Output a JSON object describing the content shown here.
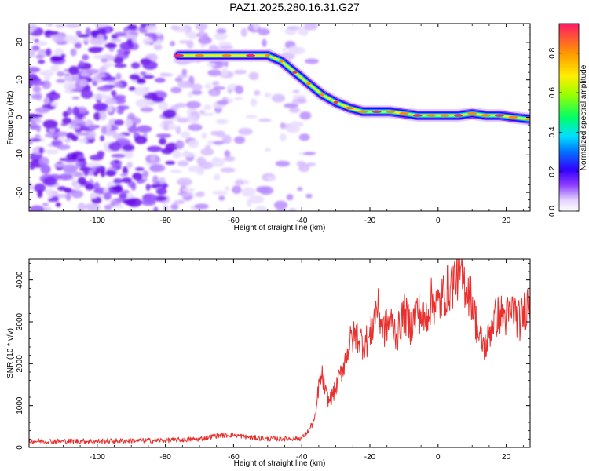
{
  "title": "PAZ1.2025.280.16.31.G27",
  "chart_data": [
    {
      "type": "heatmap",
      "name": "spectrogram",
      "xlabel": "Height of straight line (km)",
      "ylabel": "Frequency (Hz)",
      "xlim": [
        -120,
        27
      ],
      "ylim": [
        -25,
        25
      ],
      "xticks": [
        -100,
        -80,
        -60,
        -40,
        -20,
        0,
        20
      ],
      "yticks": [
        -20,
        -10,
        0,
        10,
        20
      ],
      "ridge": {
        "description": "dominant frequency track",
        "x": [
          -76,
          -70,
          -62,
          -55,
          -50,
          -46,
          -42,
          -38,
          -34,
          -30,
          -26,
          -22,
          -18,
          -14,
          -10,
          -6,
          -2,
          2,
          6,
          10,
          14,
          18,
          22,
          27
        ],
        "y": [
          16.5,
          16.5,
          16.5,
          16.5,
          16.5,
          15,
          12,
          9,
          6,
          4,
          2.5,
          1.5,
          1.5,
          1.5,
          1,
          0.5,
          0.5,
          0.5,
          0.5,
          1,
          0.5,
          0.5,
          0,
          -0.5
        ]
      },
      "noise_region_x": [
        -120,
        -40
      ],
      "colorbar": {
        "label": "Normalized spectral amplitude",
        "range": [
          0,
          0.95
        ],
        "ticks": [
          0.0,
          0.2,
          0.4,
          0.6,
          0.8
        ]
      }
    },
    {
      "type": "line",
      "name": "snr",
      "xlabel": "Height of straight line (km)",
      "ylabel": "SNR (10 * v/v)",
      "xlim": [
        -120,
        27
      ],
      "ylim": [
        0,
        4500
      ],
      "xticks": [
        -100,
        -80,
        -60,
        -40,
        -20,
        0,
        20
      ],
      "yticks": [
        0,
        1000,
        2000,
        3000,
        4000
      ],
      "color": "#e8302e",
      "series": [
        {
          "name": "SNR",
          "x": [
            -120,
            -110,
            -100,
            -90,
            -80,
            -70,
            -65,
            -60,
            -55,
            -50,
            -45,
            -40,
            -38,
            -36,
            -35,
            -34,
            -33,
            -32,
            -30,
            -28,
            -26,
            -24,
            -22,
            -20,
            -19,
            -18,
            -16,
            -14,
            -12,
            -10,
            -8,
            -6,
            -4,
            -2,
            0,
            2,
            4,
            6,
            8,
            10,
            12,
            14,
            16,
            18,
            20,
            22,
            24,
            26,
            27
          ],
          "y": [
            150,
            150,
            150,
            160,
            170,
            200,
            280,
            300,
            240,
            200,
            210,
            220,
            400,
            700,
            1500,
            1700,
            1300,
            1100,
            1400,
            1900,
            2500,
            2700,
            2500,
            2600,
            3000,
            3400,
            2800,
            3000,
            2700,
            3200,
            2900,
            3300,
            3000,
            3500,
            3400,
            3700,
            3900,
            4200,
            3900,
            3500,
            2600,
            2400,
            3000,
            3200,
            3100,
            3300,
            3000,
            3400,
            3600
          ]
        }
      ]
    }
  ]
}
